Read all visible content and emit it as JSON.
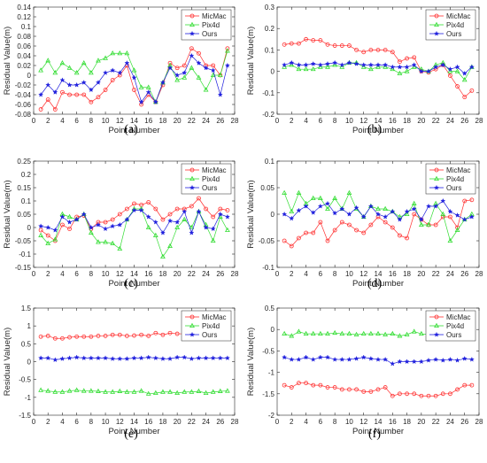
{
  "chart_data": [
    {
      "type": "line",
      "panel_label": "(a)",
      "xlabel": "Point Number",
      "ylabel": "Residual Value(m)",
      "xlim": [
        0,
        28
      ],
      "ylim": [
        -0.08,
        0.14
      ],
      "xticks": [
        0,
        2,
        4,
        6,
        8,
        10,
        12,
        14,
        16,
        18,
        20,
        22,
        24,
        26,
        28
      ],
      "yticks": [
        -0.08,
        -0.06,
        -0.04,
        -0.02,
        0,
        0.02,
        0.04,
        0.06,
        0.08,
        0.1,
        0.12,
        0.14
      ],
      "ytick_labels": [
        "-0.08",
        "-0.06",
        "-0.04",
        "-0.02",
        "0",
        "0.02",
        "0.04",
        "0.06",
        "0.08",
        "0.1",
        "0.12",
        "0.14"
      ],
      "legend_position": "top-right",
      "x": [
        1,
        2,
        3,
        4,
        5,
        6,
        7,
        8,
        9,
        10,
        11,
        12,
        13,
        14,
        15,
        16,
        17,
        18,
        19,
        20,
        21,
        22,
        23,
        24,
        25,
        26,
        27
      ],
      "series": [
        {
          "name": "MicMac",
          "color": "#ff3030",
          "marker": "circle",
          "values": [
            -0.07,
            -0.05,
            -0.07,
            -0.035,
            -0.04,
            -0.04,
            -0.04,
            -0.055,
            -0.045,
            -0.03,
            -0.01,
            0.0,
            0.02,
            -0.03,
            -0.06,
            -0.04,
            -0.055,
            -0.02,
            0.025,
            0.015,
            0.02,
            0.055,
            0.045,
            0.02,
            0.02,
            0.0,
            0.055
          ]
        },
        {
          "name": "Pix4d",
          "color": "#33dd33",
          "marker": "triangle",
          "values": [
            0.01,
            0.03,
            0.005,
            0.025,
            0.015,
            0.005,
            0.025,
            0.005,
            0.03,
            0.035,
            0.045,
            0.045,
            0.045,
            0.01,
            -0.025,
            -0.025,
            -0.055,
            -0.015,
            0.02,
            -0.01,
            -0.005,
            0.015,
            -0.005,
            -0.03,
            0.0,
            0.0,
            0.05
          ]
        },
        {
          "name": "Ours",
          "color": "#1f1fdd",
          "marker": "star",
          "values": [
            -0.04,
            -0.02,
            -0.035,
            -0.01,
            -0.02,
            -0.02,
            -0.015,
            -0.03,
            -0.015,
            0.005,
            0.01,
            0.005,
            0.025,
            -0.005,
            -0.055,
            -0.035,
            -0.055,
            -0.015,
            0.015,
            0.0,
            0.005,
            0.04,
            0.025,
            0.015,
            0.01,
            -0.04,
            0.02
          ]
        }
      ]
    },
    {
      "type": "line",
      "panel_label": "(b)",
      "xlabel": "Point Number",
      "ylabel": "Residual Value(m)",
      "xlim": [
        0,
        28
      ],
      "ylim": [
        -0.2,
        0.3
      ],
      "xticks": [
        0,
        2,
        4,
        6,
        8,
        10,
        12,
        14,
        16,
        18,
        20,
        22,
        24,
        26,
        28
      ],
      "yticks": [
        -0.2,
        -0.1,
        0,
        0.1,
        0.2,
        0.3
      ],
      "ytick_labels": [
        "-0.2",
        "-0.1",
        "0",
        "0.1",
        "0.2",
        "0.3"
      ],
      "legend_position": "top-right",
      "x": [
        1,
        2,
        3,
        4,
        5,
        6,
        7,
        8,
        9,
        10,
        11,
        12,
        13,
        14,
        15,
        16,
        17,
        18,
        19,
        20,
        21,
        22,
        23,
        24,
        25,
        26,
        27
      ],
      "series": [
        {
          "name": "MicMac",
          "color": "#ff3030",
          "marker": "circle",
          "values": [
            0.125,
            0.13,
            0.13,
            0.15,
            0.145,
            0.145,
            0.125,
            0.12,
            0.12,
            0.12,
            0.1,
            0.09,
            0.1,
            0.1,
            0.1,
            0.09,
            0.045,
            0.06,
            0.065,
            0.0,
            -0.005,
            0.01,
            0.03,
            -0.02,
            -0.07,
            -0.12,
            -0.09
          ]
        },
        {
          "name": "Pix4d",
          "color": "#33dd33",
          "marker": "triangle",
          "values": [
            0.02,
            0.03,
            0.01,
            0.01,
            0.01,
            0.02,
            0.02,
            0.03,
            0.02,
            0.04,
            0.04,
            0.02,
            0.01,
            0.02,
            0.02,
            0.01,
            -0.01,
            0.0,
            0.02,
            0.01,
            0.0,
            0.03,
            0.04,
            0.0,
            0.0,
            -0.04,
            0.02
          ]
        },
        {
          "name": "Ours",
          "color": "#1f1fdd",
          "marker": "star",
          "values": [
            0.03,
            0.04,
            0.03,
            0.03,
            0.035,
            0.03,
            0.035,
            0.04,
            0.03,
            0.04,
            0.035,
            0.03,
            0.03,
            0.03,
            0.03,
            0.02,
            0.02,
            0.02,
            0.03,
            0.0,
            0.0,
            0.02,
            0.03,
            0.01,
            0.02,
            -0.01,
            0.02
          ]
        }
      ]
    },
    {
      "type": "line",
      "panel_label": "(c)",
      "xlabel": "Point Number",
      "ylabel": "Residual Value(m)",
      "xlim": [
        0,
        28
      ],
      "ylim": [
        -0.15,
        0.25
      ],
      "xticks": [
        0,
        2,
        4,
        6,
        8,
        10,
        12,
        14,
        16,
        18,
        20,
        22,
        24,
        26,
        28
      ],
      "yticks": [
        -0.15,
        -0.1,
        -0.05,
        0,
        0.05,
        0.1,
        0.15,
        0.2,
        0.25
      ],
      "ytick_labels": [
        "-0.15",
        "-0.1",
        "-0.05",
        "0",
        "0.05",
        "0.1",
        "0.15",
        "0.2",
        "0.25"
      ],
      "legend_position": "top-right",
      "x": [
        1,
        2,
        3,
        4,
        5,
        6,
        7,
        8,
        9,
        10,
        11,
        12,
        13,
        14,
        15,
        16,
        17,
        18,
        19,
        20,
        21,
        22,
        23,
        24,
        25,
        26,
        27
      ],
      "series": [
        {
          "name": "MicMac",
          "color": "#ff3030",
          "marker": "circle",
          "values": [
            -0.01,
            -0.03,
            -0.05,
            0.01,
            -0.005,
            0.04,
            0.045,
            -0.005,
            0.02,
            0.02,
            0.03,
            0.05,
            0.07,
            0.09,
            0.085,
            0.095,
            0.07,
            0.03,
            0.05,
            0.07,
            0.07,
            0.08,
            0.11,
            0.07,
            0.04,
            0.07,
            0.065
          ]
        },
        {
          "name": "Pix4d",
          "color": "#33dd33",
          "marker": "triangle",
          "values": [
            -0.03,
            -0.06,
            -0.045,
            0.05,
            0.04,
            0.03,
            0.05,
            -0.02,
            -0.055,
            -0.055,
            -0.06,
            -0.08,
            0.03,
            0.07,
            0.07,
            0.0,
            -0.03,
            -0.11,
            -0.07,
            0.0,
            0.03,
            0.0,
            0.06,
            0.01,
            -0.05,
            0.04,
            -0.01
          ]
        },
        {
          "name": "Ours",
          "color": "#1f1fdd",
          "marker": "star",
          "values": [
            0.005,
            0.0,
            -0.01,
            0.04,
            0.02,
            0.03,
            0.05,
            0.0,
            0.01,
            -0.005,
            0.005,
            0.01,
            0.03,
            0.065,
            0.065,
            0.04,
            0.02,
            -0.02,
            0.025,
            0.02,
            0.06,
            -0.02,
            0.06,
            0.0,
            -0.005,
            0.05,
            0.04
          ]
        }
      ]
    },
    {
      "type": "line",
      "panel_label": "(d)",
      "xlabel": "Point Number",
      "ylabel": "Residual Value(m)",
      "xlim": [
        0,
        28
      ],
      "ylim": [
        -0.1,
        0.1
      ],
      "xticks": [
        0,
        2,
        4,
        6,
        8,
        10,
        12,
        14,
        16,
        18,
        20,
        22,
        24,
        26,
        28
      ],
      "yticks": [
        -0.1,
        -0.05,
        0,
        0.05,
        0.1
      ],
      "ytick_labels": [
        "-0.1",
        "-0.05",
        "0",
        "0.05",
        "0.1"
      ],
      "legend_position": "top-right",
      "x": [
        1,
        2,
        3,
        4,
        5,
        6,
        7,
        8,
        9,
        10,
        11,
        12,
        13,
        14,
        15,
        16,
        17,
        18,
        19,
        20,
        21,
        22,
        23,
        24,
        25,
        26,
        27
      ],
      "series": [
        {
          "name": "MicMac",
          "color": "#ff3030",
          "marker": "circle",
          "values": [
            -0.05,
            -0.06,
            -0.045,
            -0.035,
            -0.035,
            -0.015,
            -0.05,
            -0.03,
            -0.015,
            -0.02,
            -0.03,
            -0.035,
            -0.02,
            -0.005,
            -0.015,
            -0.025,
            -0.04,
            -0.045,
            0.0,
            -0.01,
            -0.02,
            -0.02,
            -0.005,
            -0.005,
            -0.025,
            0.025,
            0.027
          ]
        },
        {
          "name": "Pix4d",
          "color": "#33dd33",
          "marker": "triangle",
          "values": [
            0.04,
            0.005,
            0.04,
            0.02,
            0.03,
            0.03,
            0.01,
            0.03,
            0.01,
            0.04,
            0.01,
            -0.005,
            0.015,
            0.01,
            0.01,
            0.005,
            -0.005,
            0.0,
            0.02,
            -0.02,
            -0.02,
            0.02,
            0.0,
            -0.05,
            -0.03,
            -0.01,
            0.0
          ]
        },
        {
          "name": "Ours",
          "color": "#1f1fdd",
          "marker": "star",
          "values": [
            0.0,
            -0.008,
            0.007,
            0.015,
            0.003,
            0.015,
            0.02,
            0.002,
            0.01,
            0.0,
            0.012,
            -0.005,
            0.015,
            0.0,
            -0.005,
            0.005,
            -0.01,
            0.005,
            0.01,
            -0.01,
            0.015,
            0.015,
            0.025,
            0.005,
            -0.002,
            -0.01,
            -0.005
          ]
        }
      ]
    },
    {
      "type": "line",
      "panel_label": "(e)",
      "xlabel": "Point Number",
      "ylabel": "Residual Value(m)",
      "xlim": [
        0,
        28
      ],
      "ylim": [
        -1.5,
        1.5
      ],
      "xticks": [
        0,
        2,
        4,
        6,
        8,
        10,
        12,
        14,
        16,
        18,
        20,
        22,
        24,
        26,
        28
      ],
      "yticks": [
        -1.5,
        -1,
        -0.5,
        0,
        0.5,
        1,
        1.5
      ],
      "ytick_labels": [
        "-1.5",
        "-1",
        "-0.5",
        "0",
        "0.5",
        "1",
        "1.5"
      ],
      "legend_position": "top-right",
      "x": [
        1,
        2,
        3,
        4,
        5,
        6,
        7,
        8,
        9,
        10,
        11,
        12,
        13,
        14,
        15,
        16,
        17,
        18,
        19,
        20,
        21,
        22,
        23,
        24,
        25,
        26,
        27
      ],
      "series": [
        {
          "name": "MicMac",
          "color": "#ff3030",
          "marker": "circle",
          "values": [
            0.7,
            0.72,
            0.65,
            0.65,
            0.68,
            0.7,
            0.7,
            0.7,
            0.72,
            0.72,
            0.75,
            0.75,
            0.72,
            0.73,
            0.75,
            0.72,
            0.8,
            0.75,
            0.8,
            0.78,
            0.78,
            0.72,
            0.8,
            0.72,
            0.72,
            0.68,
            0.68
          ]
        },
        {
          "name": "Pix4d",
          "color": "#33dd33",
          "marker": "triangle",
          "values": [
            -0.8,
            -0.82,
            -0.85,
            -0.85,
            -0.82,
            -0.8,
            -0.82,
            -0.82,
            -0.83,
            -0.85,
            -0.85,
            -0.83,
            -0.85,
            -0.85,
            -0.82,
            -0.9,
            -0.88,
            -0.85,
            -0.85,
            -0.88,
            -0.85,
            -0.85,
            -0.83,
            -0.88,
            -0.85,
            -0.83,
            -0.82
          ]
        },
        {
          "name": "Ours",
          "color": "#1f1fdd",
          "marker": "star",
          "values": [
            0.1,
            0.1,
            0.05,
            0.08,
            0.1,
            0.12,
            0.1,
            0.1,
            0.1,
            0.1,
            0.08,
            0.08,
            0.08,
            0.1,
            0.1,
            0.12,
            0.1,
            0.08,
            0.08,
            0.12,
            0.12,
            0.08,
            0.1,
            0.1,
            0.1,
            0.1,
            0.1
          ]
        }
      ]
    },
    {
      "type": "line",
      "panel_label": "(f)",
      "xlabel": "Point Number",
      "ylabel": "Residual Value(m)",
      "xlim": [
        0,
        28
      ],
      "ylim": [
        -2,
        0.5
      ],
      "xticks": [
        0,
        2,
        4,
        6,
        8,
        10,
        12,
        14,
        16,
        18,
        20,
        22,
        24,
        26,
        28
      ],
      "yticks": [
        -2,
        -1.5,
        -1,
        -0.5,
        0,
        0.5
      ],
      "ytick_labels": [
        "-2",
        "-1.5",
        "-1",
        "-0.5",
        "0",
        "0.5"
      ],
      "legend_position": "top-right",
      "x": [
        1,
        2,
        3,
        4,
        5,
        6,
        7,
        8,
        9,
        10,
        11,
        12,
        13,
        14,
        15,
        16,
        17,
        18,
        19,
        20,
        21,
        22,
        23,
        24,
        25,
        26,
        27
      ],
      "series": [
        {
          "name": "MicMac",
          "color": "#ff3030",
          "marker": "circle",
          "values": [
            -1.3,
            -1.35,
            -1.25,
            -1.25,
            -1.3,
            -1.3,
            -1.35,
            -1.35,
            -1.4,
            -1.4,
            -1.4,
            -1.45,
            -1.45,
            -1.4,
            -1.35,
            -1.55,
            -1.5,
            -1.5,
            -1.5,
            -1.55,
            -1.55,
            -1.55,
            -1.5,
            -1.5,
            -1.4,
            -1.3,
            -1.3
          ]
        },
        {
          "name": "Pix4d",
          "color": "#33dd33",
          "marker": "triangle",
          "values": [
            -0.1,
            -0.15,
            -0.05,
            -0.1,
            -0.1,
            -0.1,
            -0.1,
            -0.08,
            -0.1,
            -0.1,
            -0.12,
            -0.1,
            -0.1,
            -0.1,
            -0.12,
            -0.1,
            -0.15,
            -0.12,
            -0.05,
            -0.1,
            -0.12,
            -0.1,
            -0.12,
            -0.1,
            -0.15,
            -0.08,
            -0.12
          ]
        },
        {
          "name": "Ours",
          "color": "#1f1fdd",
          "marker": "star",
          "values": [
            -0.65,
            -0.7,
            -0.7,
            -0.65,
            -0.7,
            -0.65,
            -0.65,
            -0.7,
            -0.7,
            -0.7,
            -0.68,
            -0.65,
            -0.68,
            -0.7,
            -0.7,
            -0.8,
            -0.75,
            -0.75,
            -0.75,
            -0.75,
            -0.72,
            -0.7,
            -0.72,
            -0.7,
            -0.72,
            -0.68,
            -0.7
          ]
        }
      ]
    }
  ]
}
